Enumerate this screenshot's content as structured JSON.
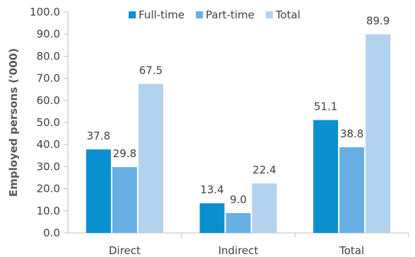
{
  "chart_data": {
    "type": "bar",
    "categories": [
      "Direct",
      "Indirect",
      "Total"
    ],
    "series": [
      {
        "name": "Full-time",
        "values": [
          37.8,
          13.4,
          51.1
        ],
        "color": "#0a8fcf"
      },
      {
        "name": "Part-time",
        "values": [
          29.8,
          9.0,
          38.8
        ],
        "color": "#68b0e3"
      },
      {
        "name": "Total",
        "values": [
          67.5,
          22.4,
          89.9
        ],
        "color": "#b3d2ee"
      }
    ],
    "data_labels": [
      [
        "37.8",
        "29.8",
        "67.5"
      ],
      [
        "13.4",
        "9.0",
        "22.4"
      ],
      [
        "51.1",
        "38.8",
        "89.9"
      ]
    ],
    "y_ticks": [
      "0.0",
      "10.0",
      "20.0",
      "30.0",
      "40.0",
      "50.0",
      "60.0",
      "70.0",
      "80.0",
      "90.0",
      "100.0"
    ],
    "ylim": [
      0,
      100
    ],
    "xlabel": "",
    "ylabel": "Employed persons ('000)",
    "legend_position": "top",
    "grid": false
  }
}
